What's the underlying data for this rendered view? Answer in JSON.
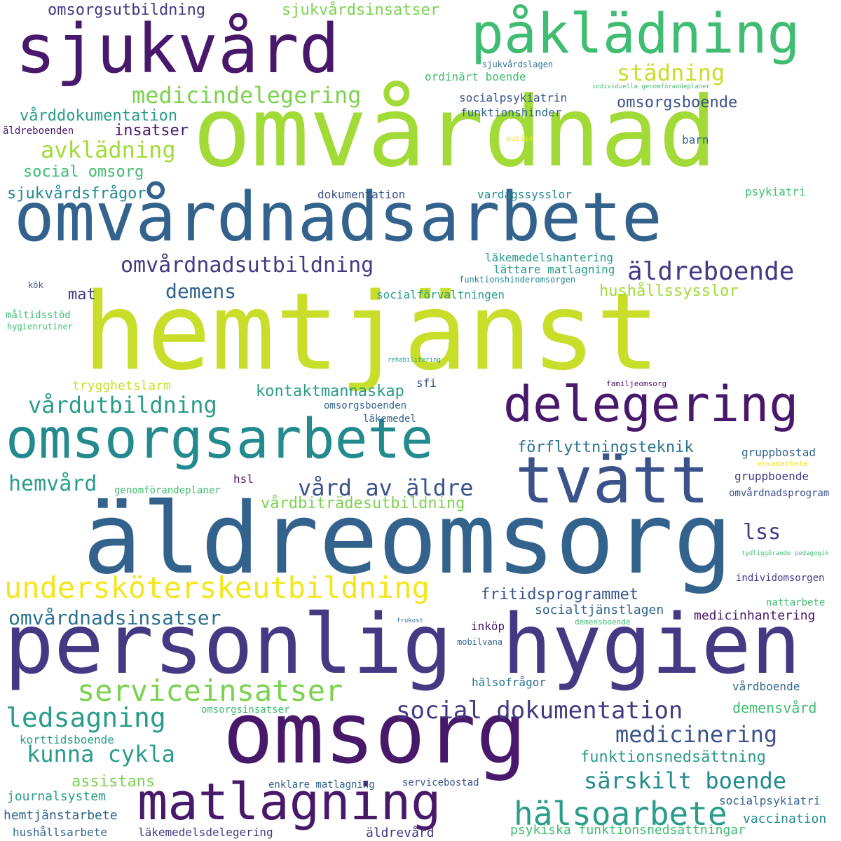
{
  "words": {
    "hemtjanst": "hemtjänst",
    "omvardnad": "omvårdnad",
    "aldreomsorg": "äldreomsorg",
    "personlig_hygien": "personlig hygien",
    "omsorg": "omsorg",
    "omvardnadsarbete": "omvårdnadsarbete",
    "sjukvard": "sjukvård",
    "pakladning": "påklädning",
    "omsorgsarbete": "omsorgsarbete",
    "delegering": "delegering",
    "tvatt": "tvätt",
    "matlagning": "matlagning",
    "underskoterskeutbildning": "undersköterskeutbildning",
    "serviceinsatser": "serviceinsatser",
    "halsoarbete": "hälsoarbete",
    "vardutbildning": "vårdutbildning",
    "omvardnadsutbildning": "omvårdnadsutbildning",
    "aldreboende": "äldreboende",
    "medicindelegering": "medicindelegering",
    "stadning": "städning",
    "avkladning": "avklädning",
    "social_dokumentation": "social dokumentation",
    "ledsagning": "ledsagning",
    "sarskilt_boende": "särskilt boende",
    "medicinering": "medicinering",
    "kunna_cykla": "kunna cykla",
    "vard_av_aldre": "vård av äldre",
    "omvardnadsinsatser": "omvårdnadsinsatser",
    "hemvard": "hemvård",
    "demens": "demens",
    "omsorgsutbildning": "omsorgsutbildning",
    "sjukvardsinsatser": "sjukvårdsinsatser",
    "vardbitradesutbildning": "vårdbiträdesutbildning",
    "fritidsprogrammet": "fritidsprogrammet",
    "kontaktmannaskap": "kontaktmannaskap",
    "forflyttningsteknik": "förflyttningsteknik",
    "lss": "lss",
    "social_omsorg": "social omsorg",
    "sjukvardsfragor": "sjukvårdsfrågor",
    "varddokumentation": "vårddokumentation",
    "insatser": "insatser",
    "omsorgsboende": "omsorgsboende",
    "hushallssysslor": "hushållssysslor",
    "funktionsnedsattning": "funktionsnedsättning",
    "demensvard": "demensvård",
    "assistans": "assistans",
    "mat": "mat",
    "psykiska_funktionsnedsattningar": "psykiska funktionsnedsättningar",
    "vaccination": "vaccination",
    "hemtjanstarbete": "hemtjänstarbete",
    "hushallsarbete": "hushållsarbete",
    "lakemedelsdelegering": "läkemedelsdelegering",
    "aldrevard": "äldrevård",
    "journalsystem": "journalsystem",
    "korttidsboende": "korttidsboende",
    "socialpsykiatri": "socialpsykiatri",
    "vardboende": "vårdboende",
    "halsofragor": "hälsofrågor",
    "medicinhantering": "medicinhantering",
    "socialtjanstlagen": "socialtjänstlagen",
    "gruppbostad": "gruppbostad",
    "gruppboende": "gruppboende",
    "omvardnadsprogram": "omvårdnadsprogram",
    "genomforandeplaner": "genomförandeplaner",
    "hsl": "hsl",
    "trygghetslarm": "trygghetslarm",
    "omsorgsboenden": "omsorgsboenden",
    "lakemedel": "läkemedel",
    "sfi": "sfi",
    "socialforvaltningen": "socialförvaltningen",
    "lakemedelshantering": "läkemedelshantering",
    "lattare_matlagning": "lättare matlagning",
    "dokumentation": "dokumentation",
    "vardagssysslor": "vardagssysslor",
    "psykiatri": "psykiatri",
    "ordinart_boende": "ordinärt boende",
    "socialpsykiatrin": "socialpsykiatrin",
    "funktionshinder": "funktionshinder",
    "barn": "barn",
    "aldreboenden": "äldreboenden",
    "inkop": "inköp",
    "mobilvana": "mobilvana",
    "servicebostad": "servicebostad",
    "enklare_matlagning": "enklare matlagning",
    "omsorgsinsatser": "omsorgsinsatser",
    "individomsorgen": "individomsorgen",
    "nattarbete": "nattarbete",
    "maltidsstod": "måltidsstöd",
    "hygienrutiner": "hygienrutiner",
    "kok": "kök",
    "funktionshinderomsorgen": "funktionshinderomsorgen",
    "sjukvardslagen": "sjukvårdslagen",
    "individuella_genomforandeplaner": "individuella genomförandeplaner",
    "autism": "autism",
    "rehabilitering": "rehabilitering",
    "familjeomsorg": "familjeomsorg",
    "ensamarbete": "ensamarbete",
    "tydliggorande_pedagogik": "tydliggörande pedagogik",
    "frukost": "frukost",
    "demensboende": "demensboende"
  }
}
